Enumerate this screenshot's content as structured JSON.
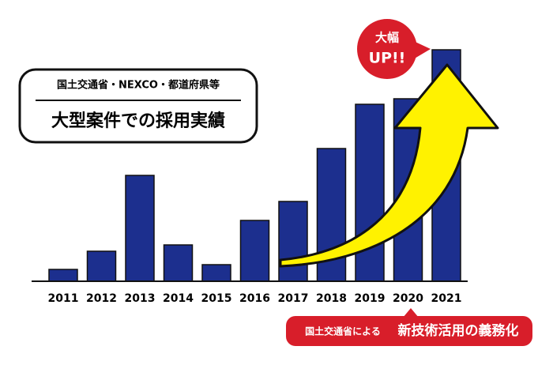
{
  "chart_data": {
    "type": "bar",
    "title": "国土交通省・NEXCO・都道府県等",
    "subtitle": "大型案件での採用実績",
    "categories": [
      "2011",
      "2012",
      "2013",
      "2014",
      "2015",
      "2016",
      "2017",
      "2018",
      "2019",
      "2020",
      "2021"
    ],
    "values": [
      15,
      38,
      134,
      46,
      21,
      77,
      101,
      168,
      224,
      231,
      293
    ],
    "color": "#1c2f8e",
    "annotations": {
      "bubble_top": "大幅",
      "bubble_bottom": "UP!!",
      "note_small": "国土交通省による",
      "note_large": "新技術活用の義務化"
    }
  }
}
